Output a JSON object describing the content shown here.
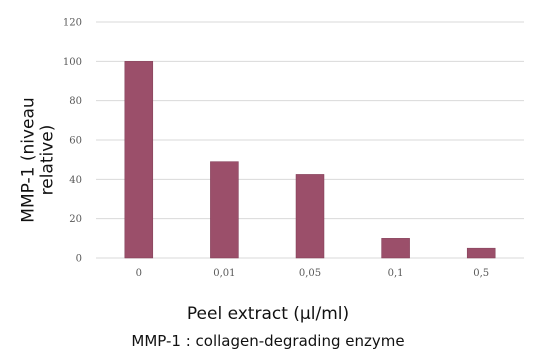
{
  "chart_data": {
    "type": "bar",
    "categories": [
      "0",
      "0,01",
      "0,05",
      "0,1",
      "0,5"
    ],
    "values": [
      100,
      49,
      42.5,
      10,
      5
    ],
    "ylim": [
      0,
      120
    ],
    "yticks": [
      0,
      20,
      40,
      60,
      80,
      100,
      120
    ],
    "grid": true,
    "ylabel_lines": [
      "MMP-1 (niveau",
      "relative)"
    ],
    "xlabel": "Peel extract (µl/ml)",
    "caption": "MMP-1 : collagen-degrading enzyme",
    "colors": {
      "bar": "#9b4f6a",
      "bar_edge": "#7e3a54",
      "grid": "#d9d9d9",
      "tick_text": "#595959"
    }
  }
}
